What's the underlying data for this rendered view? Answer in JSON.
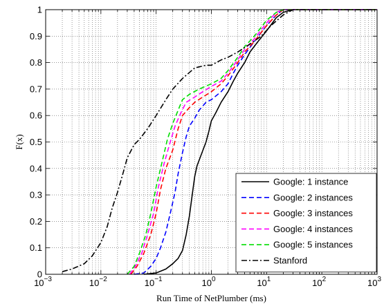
{
  "chart_data": {
    "type": "line",
    "title": "",
    "xlabel": "Run Time of NetPlumber (ms)",
    "ylabel": "F(x)",
    "xscale": "log",
    "xlim": [
      0.001,
      1000
    ],
    "ylim": [
      0,
      1
    ],
    "grid": true,
    "legend_position": "bottom-right",
    "x_ticks": [
      {
        "value": 0.001,
        "base": "10",
        "exp": "−3"
      },
      {
        "value": 0.01,
        "base": "10",
        "exp": "−2"
      },
      {
        "value": 0.1,
        "base": "10",
        "exp": "−1"
      },
      {
        "value": 1,
        "base": "10",
        "exp": "0"
      },
      {
        "value": 10,
        "base": "10",
        "exp": "1"
      },
      {
        "value": 100,
        "base": "10",
        "exp": "2"
      },
      {
        "value": 1000,
        "base": "10",
        "exp": "3"
      }
    ],
    "y_ticks": [
      {
        "value": 0,
        "label": "0"
      },
      {
        "value": 0.1,
        "label": "0.1"
      },
      {
        "value": 0.2,
        "label": "0.2"
      },
      {
        "value": 0.3,
        "label": "0.3"
      },
      {
        "value": 0.4,
        "label": "0.4"
      },
      {
        "value": 0.5,
        "label": "0.5"
      },
      {
        "value": 0.6,
        "label": "0.6"
      },
      {
        "value": 0.7,
        "label": "0.7"
      },
      {
        "value": 0.8,
        "label": "0.8"
      },
      {
        "value": 0.9,
        "label": "0.9"
      },
      {
        "value": 1,
        "label": "1"
      }
    ],
    "series": [
      {
        "name": "Google: 1 instance",
        "color": "#000000",
        "dash": "solid",
        "points": [
          [
            0.06,
            0
          ],
          [
            0.1,
            0.005
          ],
          [
            0.15,
            0.02
          ],
          [
            0.2,
            0.04
          ],
          [
            0.25,
            0.06
          ],
          [
            0.3,
            0.09
          ],
          [
            0.35,
            0.15
          ],
          [
            0.4,
            0.22
          ],
          [
            0.45,
            0.3
          ],
          [
            0.5,
            0.37
          ],
          [
            0.55,
            0.41
          ],
          [
            0.65,
            0.45
          ],
          [
            0.8,
            0.5
          ],
          [
            0.9,
            0.54
          ],
          [
            1.0,
            0.58
          ],
          [
            1.2,
            0.61
          ],
          [
            1.5,
            0.65
          ],
          [
            2,
            0.69
          ],
          [
            2.5,
            0.73
          ],
          [
            3,
            0.76
          ],
          [
            4,
            0.8
          ],
          [
            5,
            0.84
          ],
          [
            7,
            0.88
          ],
          [
            10,
            0.92
          ],
          [
            15,
            0.97
          ],
          [
            20,
            0.99
          ],
          [
            30,
            1.0
          ],
          [
            1000,
            1.0
          ]
        ]
      },
      {
        "name": "Google: 2 instances",
        "color": "#0000ff",
        "dash": "dashed",
        "points": [
          [
            0.04,
            0
          ],
          [
            0.06,
            0.005
          ],
          [
            0.08,
            0.03
          ],
          [
            0.1,
            0.06
          ],
          [
            0.12,
            0.1
          ],
          [
            0.15,
            0.16
          ],
          [
            0.18,
            0.23
          ],
          [
            0.22,
            0.31
          ],
          [
            0.25,
            0.38
          ],
          [
            0.3,
            0.46
          ],
          [
            0.35,
            0.52
          ],
          [
            0.4,
            0.56
          ],
          [
            0.5,
            0.59
          ],
          [
            0.6,
            0.62
          ],
          [
            0.8,
            0.65
          ],
          [
            1.0,
            0.66
          ],
          [
            1.5,
            0.69
          ],
          [
            2,
            0.72
          ],
          [
            2.5,
            0.76
          ],
          [
            3,
            0.79
          ],
          [
            4,
            0.83
          ],
          [
            6,
            0.88
          ],
          [
            10,
            0.94
          ],
          [
            15,
            0.98
          ],
          [
            20,
            1.0
          ],
          [
            1000,
            1.0
          ]
        ]
      },
      {
        "name": "Google: 3 instances",
        "color": "#ff0000",
        "dash": "dashed",
        "points": [
          [
            0.035,
            0
          ],
          [
            0.045,
            0.03
          ],
          [
            0.06,
            0.08
          ],
          [
            0.08,
            0.15
          ],
          [
            0.1,
            0.23
          ],
          [
            0.12,
            0.32
          ],
          [
            0.15,
            0.4
          ],
          [
            0.2,
            0.47
          ],
          [
            0.25,
            0.55
          ],
          [
            0.3,
            0.6
          ],
          [
            0.4,
            0.63
          ],
          [
            0.5,
            0.65
          ],
          [
            0.7,
            0.67
          ],
          [
            1.0,
            0.69
          ],
          [
            1.5,
            0.72
          ],
          [
            2,
            0.75
          ],
          [
            3,
            0.8
          ],
          [
            4,
            0.84
          ],
          [
            6,
            0.88
          ],
          [
            10,
            0.94
          ],
          [
            15,
            0.98
          ],
          [
            20,
            1.0
          ],
          [
            1000,
            1.0
          ]
        ]
      },
      {
        "name": "Google: 4 instances",
        "color": "#ff00ff",
        "dash": "dashed",
        "points": [
          [
            0.033,
            0
          ],
          [
            0.042,
            0.03
          ],
          [
            0.055,
            0.08
          ],
          [
            0.07,
            0.15
          ],
          [
            0.09,
            0.23
          ],
          [
            0.11,
            0.33
          ],
          [
            0.14,
            0.42
          ],
          [
            0.18,
            0.5
          ],
          [
            0.22,
            0.56
          ],
          [
            0.28,
            0.61
          ],
          [
            0.35,
            0.65
          ],
          [
            0.5,
            0.67
          ],
          [
            0.7,
            0.69
          ],
          [
            1.0,
            0.71
          ],
          [
            1.5,
            0.73
          ],
          [
            2,
            0.76
          ],
          [
            3,
            0.81
          ],
          [
            4,
            0.85
          ],
          [
            6,
            0.89
          ],
          [
            10,
            0.95
          ],
          [
            15,
            0.99
          ],
          [
            20,
            1.0
          ],
          [
            1000,
            1.0
          ]
        ]
      },
      {
        "name": "Google: 5 instances",
        "color": "#00dd00",
        "dash": "dashed",
        "points": [
          [
            0.03,
            0
          ],
          [
            0.04,
            0.03
          ],
          [
            0.05,
            0.08
          ],
          [
            0.065,
            0.15
          ],
          [
            0.08,
            0.23
          ],
          [
            0.1,
            0.33
          ],
          [
            0.13,
            0.43
          ],
          [
            0.16,
            0.51
          ],
          [
            0.2,
            0.57
          ],
          [
            0.25,
            0.62
          ],
          [
            0.3,
            0.66
          ],
          [
            0.4,
            0.68
          ],
          [
            0.6,
            0.7
          ],
          [
            1.0,
            0.72
          ],
          [
            1.5,
            0.74
          ],
          [
            2,
            0.77
          ],
          [
            3,
            0.82
          ],
          [
            4,
            0.86
          ],
          [
            6,
            0.9
          ],
          [
            10,
            0.96
          ],
          [
            15,
            0.99
          ],
          [
            20,
            1.0
          ],
          [
            1000,
            1.0
          ]
        ]
      },
      {
        "name": "Stanford",
        "color": "#000000",
        "dash": "dashdot",
        "points": [
          [
            0.002,
            0.01
          ],
          [
            0.003,
            0.02
          ],
          [
            0.005,
            0.04
          ],
          [
            0.007,
            0.07
          ],
          [
            0.01,
            0.12
          ],
          [
            0.013,
            0.18
          ],
          [
            0.016,
            0.25
          ],
          [
            0.02,
            0.31
          ],
          [
            0.025,
            0.38
          ],
          [
            0.03,
            0.44
          ],
          [
            0.04,
            0.49
          ],
          [
            0.05,
            0.51
          ],
          [
            0.07,
            0.55
          ],
          [
            0.1,
            0.6
          ],
          [
            0.15,
            0.66
          ],
          [
            0.2,
            0.7
          ],
          [
            0.3,
            0.74
          ],
          [
            0.5,
            0.78
          ],
          [
            0.8,
            0.79
          ],
          [
            1.0,
            0.79
          ],
          [
            1.5,
            0.81
          ],
          [
            2,
            0.82
          ],
          [
            3,
            0.84
          ],
          [
            5,
            0.87
          ],
          [
            8,
            0.9
          ],
          [
            12,
            0.94
          ],
          [
            20,
            0.98
          ],
          [
            30,
            1.0
          ],
          [
            1000,
            1.0
          ]
        ]
      }
    ]
  }
}
